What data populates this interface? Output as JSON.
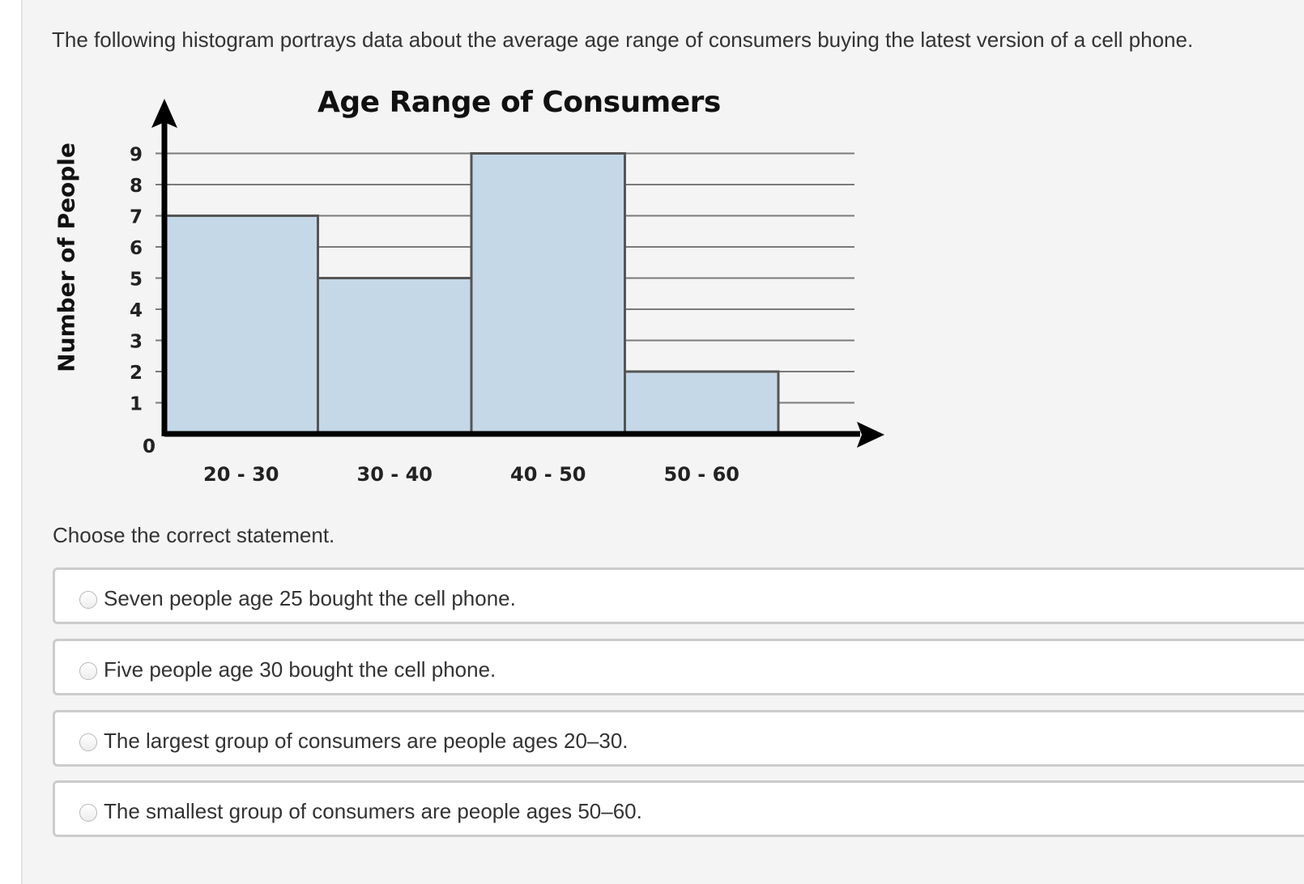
{
  "prompt": "The following histogram portrays data about the average age range of consumers buying the latest version of a cell phone.",
  "question": "Choose the correct statement.",
  "options": [
    {
      "label": "Seven people age 25 bought the cell phone.",
      "selected": false
    },
    {
      "label": "Five people age 30 bought the cell phone.",
      "selected": false
    },
    {
      "label": "The largest group of consumers are people ages 20–30.",
      "selected": false
    },
    {
      "label": "The smallest group of consumers are people ages 50–60.",
      "selected": false
    }
  ],
  "colors": {
    "bar_fill": "#c5d8e7",
    "bar_stroke": "#555555",
    "axis": "#000000",
    "grid": "#7a7a7a",
    "panel_bg": "#f4f4f4",
    "option_border": "#cccccc"
  },
  "chart_data": {
    "type": "bar",
    "title": "Age Range of Consumers",
    "xlabel": "",
    "ylabel": "Number of People",
    "categories": [
      "20 - 30",
      "30 - 40",
      "40 - 50",
      "50 - 60"
    ],
    "values": [
      7,
      5,
      9,
      2
    ],
    "yticks": [
      "0",
      "1",
      "2",
      "3",
      "4",
      "5",
      "6",
      "7",
      "8",
      "9"
    ],
    "ylim": [
      0,
      9
    ],
    "grid": true,
    "legend": "none",
    "histogram": true
  }
}
